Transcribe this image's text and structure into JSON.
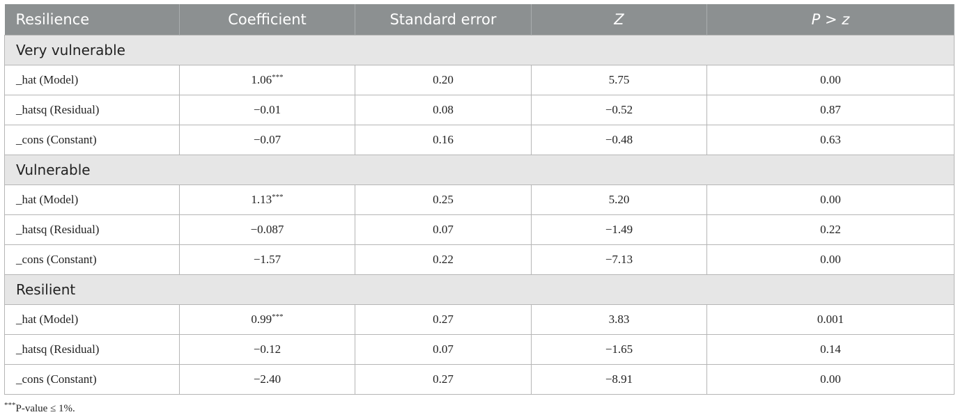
{
  "table": {
    "header": [
      "Resilience",
      "Coefficient",
      "Standard error",
      "Z",
      "P > z"
    ],
    "groups": [
      {
        "label": "Very vulnerable",
        "rows": [
          [
            "_hat (Model)",
            {
              "value": "1.06",
              "sup": "***"
            },
            "0.20",
            "5.75",
            "0.00"
          ],
          [
            "_hatsq (Residual)",
            "−0.01",
            "0.08",
            "−0.52",
            "0.87"
          ],
          [
            "_cons (Constant)",
            "−0.07",
            "0.16",
            "−0.48",
            "0.63"
          ]
        ]
      },
      {
        "label": "Vulnerable",
        "rows": [
          [
            "_hat (Model)",
            {
              "value": "1.13",
              "sup": "***"
            },
            "0.25",
            "5.20",
            "0.00"
          ],
          [
            "_hatsq (Residual)",
            "−0.087",
            "0.07",
            "−1.49",
            "0.22"
          ],
          [
            "_cons (Constant)",
            "−1.57",
            "0.22",
            "−7.13",
            "0.00"
          ]
        ]
      },
      {
        "label": "Resilient",
        "rows": [
          [
            "_hat (Model)",
            {
              "value": "0.99",
              "sup": "***"
            },
            "0.27",
            "3.83",
            "0.001"
          ],
          [
            "_hatsq (Residual)",
            "−0.12",
            "0.07",
            "−1.65",
            "0.14"
          ],
          [
            "_cons (Constant)",
            "−2.40",
            "0.27",
            "−8.91",
            "0.00"
          ]
        ]
      }
    ]
  },
  "footnote": {
    "marker": "***",
    "text": "P-value ≤ 1%."
  }
}
